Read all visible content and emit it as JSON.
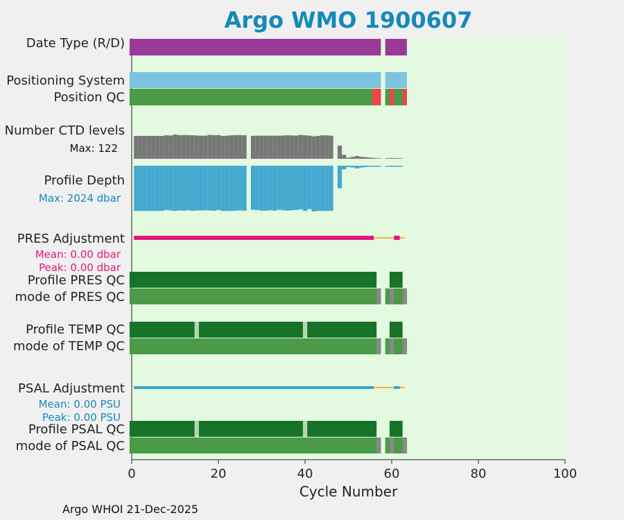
{
  "title": "Argo WMO 1900607",
  "footer": "Argo WHOI 21-Dec-2025",
  "colors": {
    "plot_bg": "#e3f9e0",
    "date_type": "#9a3a98",
    "positioning": "#7ec4e0",
    "qc_good": "#4a9a47",
    "qc_bad": "#ef4444",
    "qc_dark": "#167328",
    "qc_gray": "#888888",
    "qc_light": "#b5d6b4",
    "ctd_gray": "#787878",
    "depth_blue": "#43a9cf",
    "pres_adj": "#e0177e",
    "psal_adj": "#3aa3c8",
    "orange_line": "#f3b53a",
    "title": "#1489bb"
  },
  "rows": {
    "date_type": "Date Type (R/D)",
    "positioning": "Positioning System",
    "position_qc": "Position QC",
    "ctd_levels": "Number CTD levels",
    "ctd_max": "Max: 122",
    "profile_depth": "Profile Depth",
    "depth_max": "Max: 2024 dbar",
    "pres_adj": "PRES Adjustment",
    "pres_mean": "Mean: 0.00 dbar",
    "pres_peak": "Peak: 0.00 dbar",
    "profile_pres_qc": "Profile PRES QC",
    "mode_pres_qc": "mode of PRES QC",
    "profile_temp_qc": "Profile TEMP QC",
    "mode_temp_qc": "mode of TEMP QC",
    "psal_adj": "PSAL Adjustment",
    "psal_mean": "Mean: 0.00 PSU",
    "psal_peak": "Peak: 0.00 PSU",
    "profile_psal_qc": "Profile PSAL QC",
    "mode_psal_qc": "mode of PSAL QC"
  },
  "chart_data": {
    "type": "bar",
    "title": "Argo WMO 1900607",
    "xlabel": "Cycle Number",
    "xlim": [
      0,
      100
    ],
    "xticks": [
      0,
      20,
      40,
      60,
      80,
      100
    ],
    "missing_cycles": [
      58
    ],
    "last_cycle": 63,
    "position_qc_bad_cycles": [
      56,
      57,
      60,
      63
    ],
    "ctd_levels_max": 122,
    "ctd_levels": [
      [
        1,
        115
      ],
      [
        2,
        115
      ],
      [
        3,
        115
      ],
      [
        4,
        115
      ],
      [
        5,
        115
      ],
      [
        6,
        115
      ],
      [
        7,
        115
      ],
      [
        8,
        118
      ],
      [
        9,
        117
      ],
      [
        10,
        122
      ],
      [
        11,
        119
      ],
      [
        12,
        119
      ],
      [
        13,
        119
      ],
      [
        14,
        118
      ],
      [
        15,
        117
      ],
      [
        16,
        116
      ],
      [
        17,
        116
      ],
      [
        18,
        120
      ],
      [
        19,
        119
      ],
      [
        20,
        119
      ],
      [
        21,
        115
      ],
      [
        22,
        116
      ],
      [
        23,
        118
      ],
      [
        24,
        119
      ],
      [
        25,
        119
      ],
      [
        26,
        118
      ],
      [
        28,
        115
      ],
      [
        29,
        116
      ],
      [
        30,
        116
      ],
      [
        31,
        116
      ],
      [
        32,
        116
      ],
      [
        33,
        116
      ],
      [
        34,
        116
      ],
      [
        35,
        117
      ],
      [
        36,
        118
      ],
      [
        37,
        117
      ],
      [
        38,
        117
      ],
      [
        39,
        120
      ],
      [
        40,
        118
      ],
      [
        41,
        116
      ],
      [
        42,
        113
      ],
      [
        43,
        115
      ],
      [
        44,
        118
      ],
      [
        45,
        118
      ],
      [
        46,
        116
      ],
      [
        48,
        66
      ],
      [
        49,
        20
      ],
      [
        50,
        6
      ],
      [
        51,
        10
      ],
      [
        52,
        14
      ],
      [
        53,
        10
      ],
      [
        54,
        8
      ],
      [
        55,
        6
      ],
      [
        56,
        4
      ],
      [
        57,
        3
      ],
      [
        59,
        3
      ],
      [
        60,
        4
      ],
      [
        61,
        3
      ],
      [
        62,
        3
      ]
    ],
    "depth_max": 2024,
    "profile_depth": [
      [
        1,
        2000
      ],
      [
        2,
        2000
      ],
      [
        3,
        2000
      ],
      [
        4,
        2000
      ],
      [
        5,
        2000
      ],
      [
        6,
        2000
      ],
      [
        7,
        2000
      ],
      [
        8,
        1960
      ],
      [
        9,
        1980
      ],
      [
        10,
        2000
      ],
      [
        11,
        1980
      ],
      [
        12,
        1990
      ],
      [
        13,
        1970
      ],
      [
        14,
        2000
      ],
      [
        15,
        1980
      ],
      [
        16,
        1980
      ],
      [
        17,
        1970
      ],
      [
        18,
        1980
      ],
      [
        19,
        1990
      ],
      [
        20,
        1960
      ],
      [
        21,
        2000
      ],
      [
        22,
        2000
      ],
      [
        23,
        2000
      ],
      [
        24,
        1990
      ],
      [
        25,
        1980
      ],
      [
        26,
        1990
      ],
      [
        28,
        1950
      ],
      [
        29,
        1960
      ],
      [
        30,
        1990
      ],
      [
        31,
        1990
      ],
      [
        32,
        1970
      ],
      [
        33,
        1990
      ],
      [
        34,
        1950
      ],
      [
        35,
        1970
      ],
      [
        36,
        1990
      ],
      [
        37,
        1970
      ],
      [
        38,
        1960
      ],
      [
        39,
        1930
      ],
      [
        40,
        2000
      ],
      [
        41,
        1920
      ],
      [
        42,
        2024
      ],
      [
        43,
        2000
      ],
      [
        44,
        2000
      ],
      [
        45,
        2000
      ],
      [
        46,
        2000
      ],
      [
        48,
        1000
      ],
      [
        49,
        160
      ],
      [
        50,
        60
      ],
      [
        51,
        80
      ],
      [
        52,
        120
      ],
      [
        53,
        80
      ],
      [
        54,
        60
      ],
      [
        55,
        40
      ],
      [
        56,
        40
      ],
      [
        57,
        20
      ],
      [
        59,
        20
      ],
      [
        60,
        30
      ],
      [
        61,
        20
      ],
      [
        62,
        20
      ]
    ],
    "pres_adjustment": {
      "mean": 0.0,
      "peak": 0.0,
      "unit": "dbar",
      "segments": [
        [
          1,
          56
        ],
        [
          61,
          62
        ]
      ]
    },
    "psal_adjustment": {
      "mean": 0.0,
      "peak": 0.0,
      "unit": "PSU",
      "segments": [
        [
          1,
          56
        ],
        [
          61,
          62
        ]
      ]
    },
    "profile_qc_dark_ranges": [
      [
        0,
        56
      ],
      [
        60,
        62
      ]
    ],
    "temp_psal_qc_light_cycles": [
      15,
      40
    ],
    "mode_qc_gray_cycles": [
      57,
      60,
      63
    ]
  }
}
